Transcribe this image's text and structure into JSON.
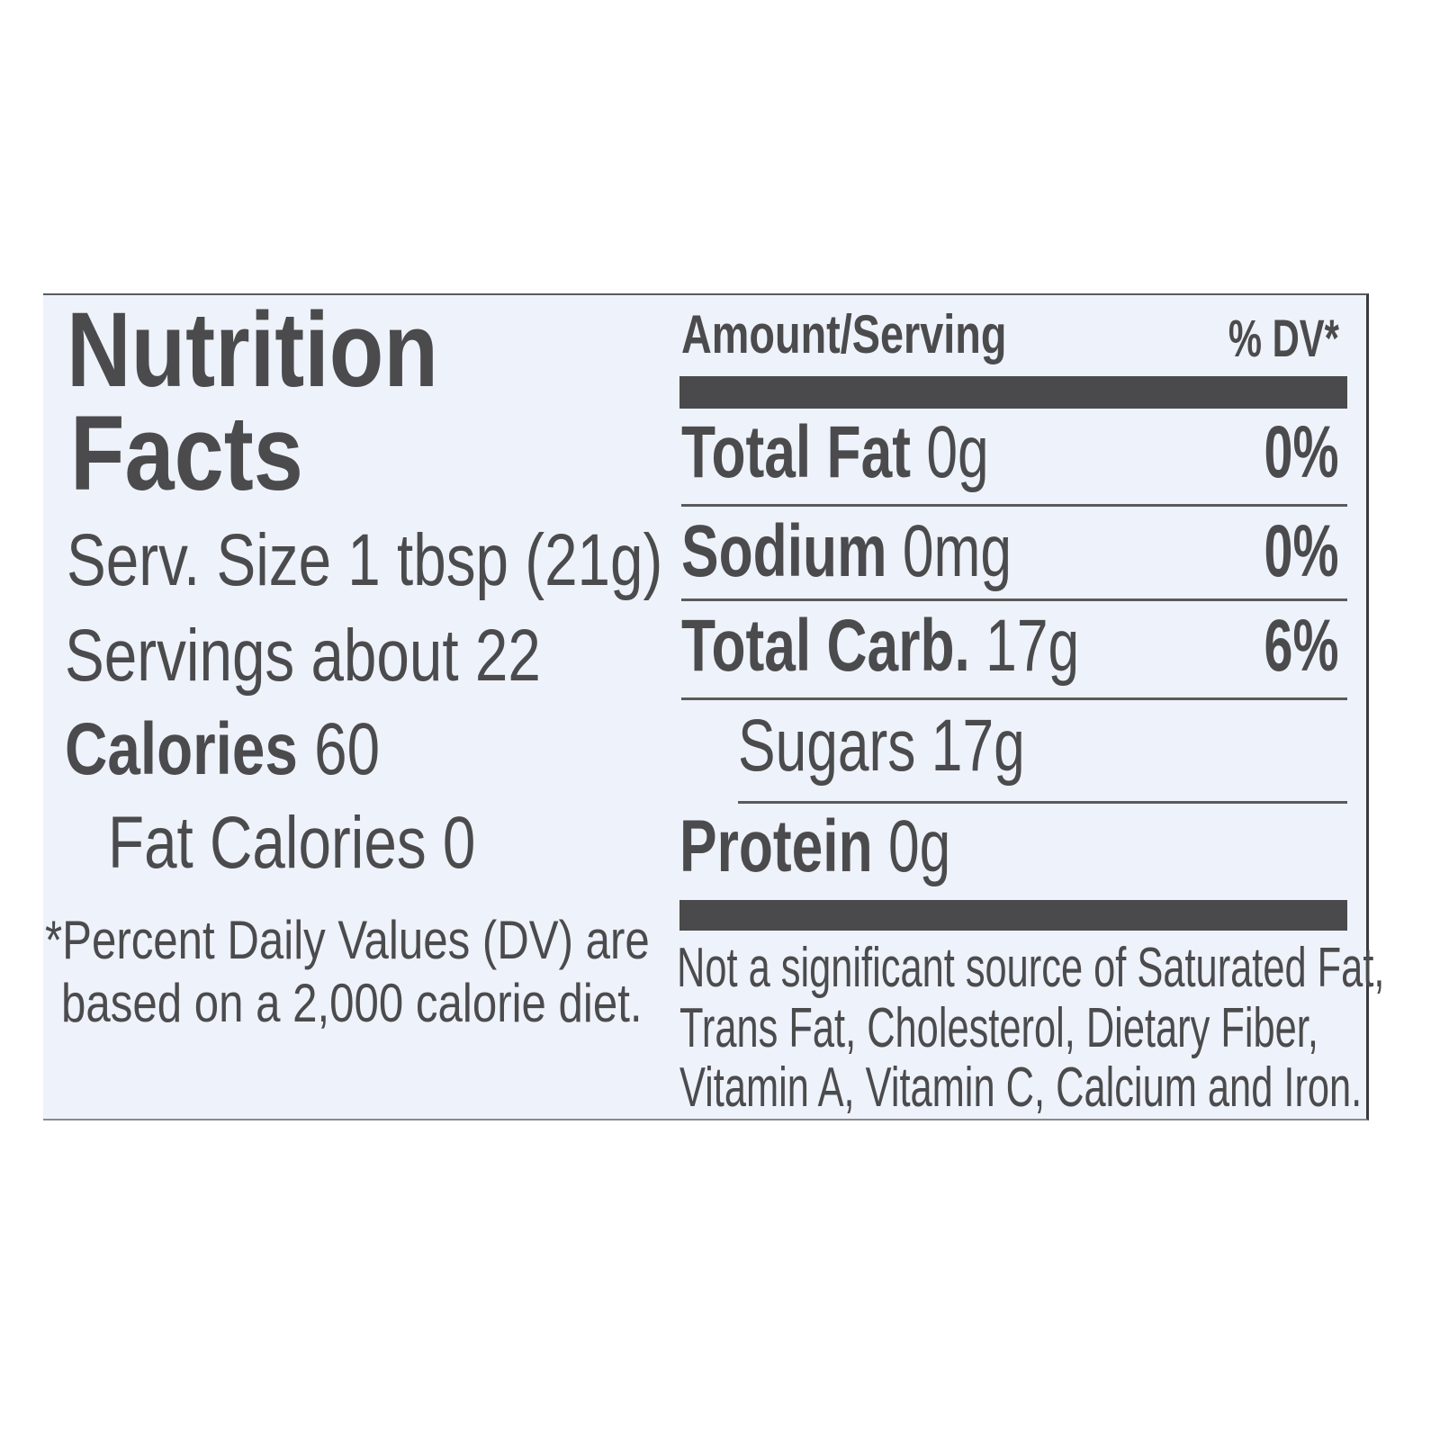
{
  "title_line1": "Nutrition",
  "title_line2": "Facts",
  "serving_size": "Serv. Size 1 tbsp (21g)",
  "servings": "Servings about 22",
  "calories": {
    "label": "Calories",
    "value": "60"
  },
  "fat_calories": "Fat Calories 0",
  "footnote": [
    "*Percent Daily Values (DV) are",
    "based on a 2,000 calorie diet."
  ],
  "header": {
    "amount": "Amount/Serving",
    "dv": "% DV*"
  },
  "nutrients": [
    {
      "label": "Total Fat",
      "amount": "0g",
      "dv": "0%"
    },
    {
      "label": "Sodium",
      "amount": "0mg",
      "dv": "0%"
    },
    {
      "label": "Total Carb.",
      "amount": "17g",
      "dv": "6%"
    },
    {
      "label": "Sugars",
      "amount": "17g"
    },
    {
      "label": "Protein",
      "amount": "0g"
    }
  ],
  "note": [
    "Not a significant source of Saturated Fat,",
    "Trans Fat, Cholesterol, Dietary Fiber,",
    "Vitamin A, Vitamin C, Calcium and Iron."
  ],
  "colors": {
    "text": "#4b4b4d",
    "label_bg": "#eef2fa"
  }
}
